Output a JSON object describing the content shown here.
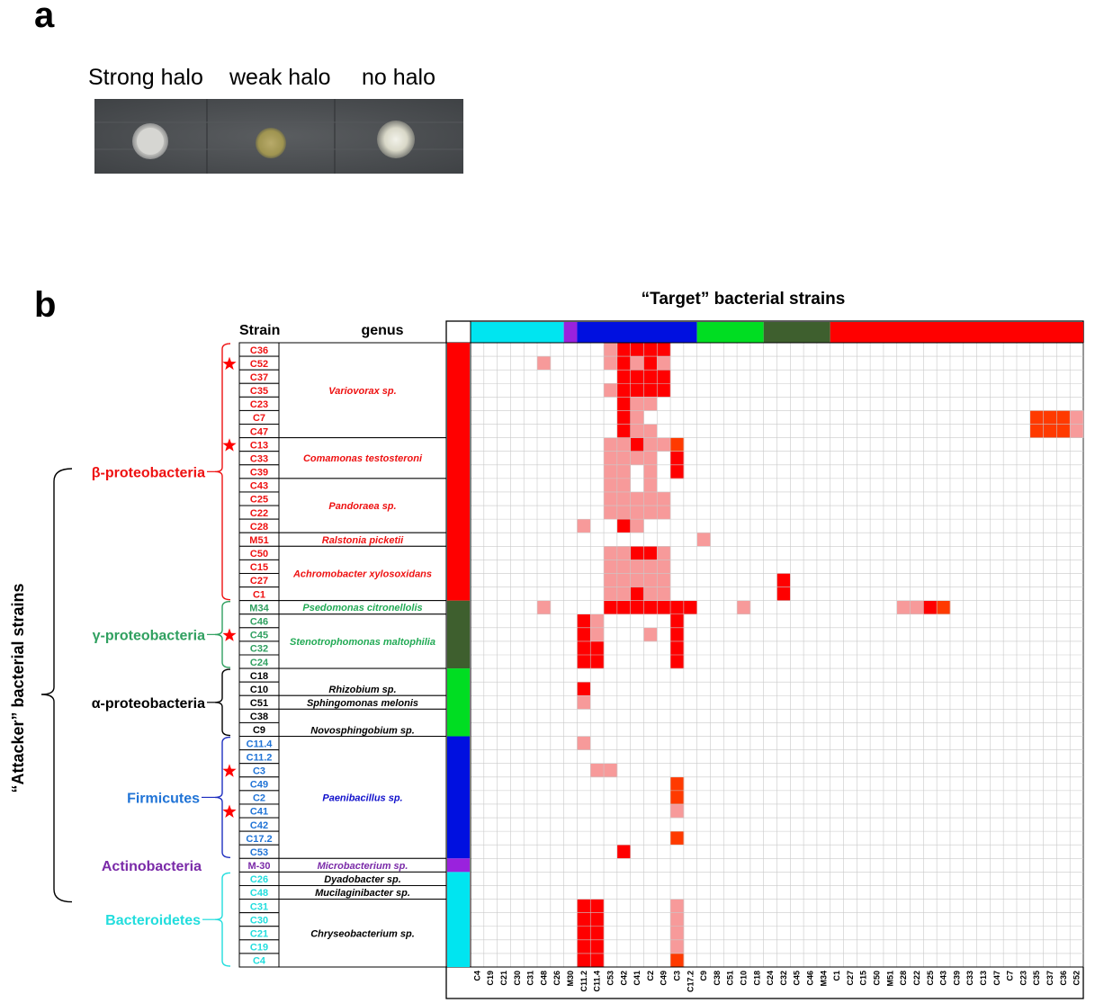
{
  "panel_a": {
    "letter": "a",
    "labels": [
      "Strong halo",
      "weak halo",
      "no halo"
    ]
  },
  "panel_b": {
    "letter": "b",
    "title": "“Target” bacterial strains",
    "y_axis_label": "“Attacker” bacterial strains",
    "header_strain": "Strain",
    "header_genus": "genus"
  },
  "colors": {
    "beta": "#ff0000",
    "gamma": "#3e5f2e",
    "alpha": "#00dd22",
    "firmicutes": "#0010e0",
    "actino": "#9a22dd",
    "bacteroidetes": "#00e5f0",
    "strong": "#ff0000",
    "weak": "#f79a9a",
    "mid": "#ff3a00",
    "group_text": {
      "beta": "#ee1111",
      "gamma": "#30a060",
      "alpha": "#000000",
      "firmicutes": "#1f73d6",
      "actino": "#7a2aa8",
      "bacteroidetes": "#22dddd"
    }
  },
  "groups": [
    {
      "name": "β-proteobacteria",
      "key": "beta"
    },
    {
      "name": "γ-proteobacteria",
      "key": "gamma"
    },
    {
      "name": "α-proteobacteria",
      "key": "alpha"
    },
    {
      "name": "Firmicutes",
      "key": "firmicutes"
    },
    {
      "name": "Actinobacteria",
      "key": "actino"
    },
    {
      "name": "Bacteroidetes",
      "key": "bacteroidetes"
    }
  ],
  "strains": [
    {
      "name": "C36",
      "g": "beta"
    },
    {
      "name": "C52",
      "g": "beta"
    },
    {
      "name": "C37",
      "g": "beta"
    },
    {
      "name": "C35",
      "g": "beta"
    },
    {
      "name": "C23",
      "g": "beta"
    },
    {
      "name": "C7",
      "g": "beta"
    },
    {
      "name": "C47",
      "g": "beta"
    },
    {
      "name": "C13",
      "g": "beta"
    },
    {
      "name": "C33",
      "g": "beta"
    },
    {
      "name": "C39",
      "g": "beta"
    },
    {
      "name": "C43",
      "g": "beta"
    },
    {
      "name": "C25",
      "g": "beta"
    },
    {
      "name": "C22",
      "g": "beta"
    },
    {
      "name": "C28",
      "g": "beta"
    },
    {
      "name": "M51",
      "g": "beta"
    },
    {
      "name": "C50",
      "g": "beta"
    },
    {
      "name": "C15",
      "g": "beta"
    },
    {
      "name": "C27",
      "g": "beta"
    },
    {
      "name": "C1",
      "g": "beta"
    },
    {
      "name": "M34",
      "g": "gamma"
    },
    {
      "name": "C46",
      "g": "gamma"
    },
    {
      "name": "C45",
      "g": "gamma"
    },
    {
      "name": "C32",
      "g": "gamma"
    },
    {
      "name": "C24",
      "g": "gamma"
    },
    {
      "name": "C18",
      "g": "alpha"
    },
    {
      "name": "C10",
      "g": "alpha"
    },
    {
      "name": "C51",
      "g": "alpha"
    },
    {
      "name": "C38",
      "g": "alpha"
    },
    {
      "name": "C9",
      "g": "alpha"
    },
    {
      "name": "C11.4",
      "g": "firmicutes"
    },
    {
      "name": "C11.2",
      "g": "firmicutes"
    },
    {
      "name": "C3",
      "g": "firmicutes"
    },
    {
      "name": "C49",
      "g": "firmicutes"
    },
    {
      "name": "C2",
      "g": "firmicutes"
    },
    {
      "name": "C41",
      "g": "firmicutes"
    },
    {
      "name": "C42",
      "g": "firmicutes"
    },
    {
      "name": "C17.2",
      "g": "firmicutes"
    },
    {
      "name": "C53",
      "g": "firmicutes"
    },
    {
      "name": "M-30",
      "g": "actino"
    },
    {
      "name": "C26",
      "g": "bacteroidetes"
    },
    {
      "name": "C48",
      "g": "bacteroidetes"
    },
    {
      "name": "C31",
      "g": "bacteroidetes"
    },
    {
      "name": "C30",
      "g": "bacteroidetes"
    },
    {
      "name": "C21",
      "g": "bacteroidetes"
    },
    {
      "name": "C19",
      "g": "bacteroidetes"
    },
    {
      "name": "C4",
      "g": "bacteroidetes"
    }
  ],
  "genera": [
    {
      "label": "Variovorax sp.",
      "start": 0,
      "end": 6,
      "g": "beta"
    },
    {
      "label": "Comamonas testosteroni",
      "start": 7,
      "end": 9,
      "g": "beta"
    },
    {
      "label": "Pandoraea sp.",
      "start": 10,
      "end": 13,
      "g": "beta"
    },
    {
      "label": "Ralstonia picketii",
      "start": 14,
      "end": 14,
      "g": "beta"
    },
    {
      "label": "Achromobacter xylosoxidans",
      "start": 15,
      "end": 18,
      "g": "beta"
    },
    {
      "label": "Psedomonas citronellolis",
      "start": 19,
      "end": 19,
      "g": "gamma"
    },
    {
      "label": "Stenotrophomonas maltophilia",
      "start": 20,
      "end": 23,
      "g": "gamma"
    },
    {
      "label": "Rhizobium sp.",
      "start": 24,
      "end": 25,
      "g": "alpha"
    },
    {
      "label": "Sphingomonas melonis",
      "start": 26,
      "end": 26,
      "g": "alpha"
    },
    {
      "label": "Novosphingobium sp.",
      "start": 27,
      "end": 28,
      "g": "alpha"
    },
    {
      "label": "Paenibacillus sp.",
      "start": 29,
      "end": 37,
      "g": "firmicutes"
    },
    {
      "label": "Microbacterium sp.",
      "start": 38,
      "end": 38,
      "g": "actino"
    },
    {
      "label": "Dyadobacter sp.",
      "start": 39,
      "end": 39,
      "g": "bacteroidetes"
    },
    {
      "label": "Mucilaginibacter sp.",
      "start": 40,
      "end": 40,
      "g": "bacteroidetes"
    },
    {
      "label": "Chryseobacterium sp.",
      "start": 41,
      "end": 45,
      "g": "bacteroidetes"
    }
  ],
  "stars_rows": [
    1,
    7,
    21,
    31,
    34
  ],
  "targets": [
    "C4",
    "C19",
    "C21",
    "C30",
    "C31",
    "C48",
    "C26",
    "M30",
    "C11.2",
    "C11.4",
    "C53",
    "C42",
    "C41",
    "C2",
    "C49",
    "C3",
    "C17.2",
    "C9",
    "C38",
    "C51",
    "C10",
    "C18",
    "C24",
    "C32",
    "C45",
    "C46",
    "M34",
    "C1",
    "C27",
    "C15",
    "C50",
    "M51",
    "C28",
    "C22",
    "C25",
    "C43",
    "C39",
    "C33",
    "C13",
    "C47",
    "C7",
    "C23",
    "C35",
    "C37",
    "C36",
    "C52"
  ],
  "target_groups": [
    {
      "key": "bacteroidetes",
      "start": 0,
      "end": 6
    },
    {
      "key": "actino",
      "start": 7,
      "end": 7
    },
    {
      "key": "firmicutes",
      "start": 8,
      "end": 16
    },
    {
      "key": "alpha",
      "start": 17,
      "end": 21
    },
    {
      "key": "gamma",
      "start": 22,
      "end": 26
    },
    {
      "key": "beta",
      "start": 27,
      "end": 45
    }
  ],
  "chart_data": {
    "type": "heatmap",
    "title": "“Target” bacterial strains",
    "ylabel": "“Attacker” bacterial strains",
    "legend_values": {
      "0": "no halo",
      "1": "weak halo",
      "2": "strong halo"
    },
    "cells": [
      {
        "row": 0,
        "col": 11,
        "v": 2
      },
      {
        "row": 0,
        "col": 12,
        "v": 2
      },
      {
        "row": 0,
        "col": 13,
        "v": 2
      },
      {
        "row": 0,
        "col": 14,
        "v": 2
      },
      {
        "row": 0,
        "col": 10,
        "v": 1
      },
      {
        "row": 1,
        "col": 5,
        "v": 1
      },
      {
        "row": 1,
        "col": 10,
        "v": 1
      },
      {
        "row": 1,
        "col": 11,
        "v": 2
      },
      {
        "row": 1,
        "col": 12,
        "v": 1
      },
      {
        "row": 1,
        "col": 13,
        "v": 2
      },
      {
        "row": 1,
        "col": 14,
        "v": 1
      },
      {
        "row": 2,
        "col": 11,
        "v": 2
      },
      {
        "row": 2,
        "col": 12,
        "v": 2
      },
      {
        "row": 2,
        "col": 13,
        "v": 2
      },
      {
        "row": 2,
        "col": 14,
        "v": 2
      },
      {
        "row": 3,
        "col": 10,
        "v": 1
      },
      {
        "row": 3,
        "col": 11,
        "v": 2
      },
      {
        "row": 3,
        "col": 12,
        "v": 2
      },
      {
        "row": 3,
        "col": 13,
        "v": 2
      },
      {
        "row": 3,
        "col": 14,
        "v": 2
      },
      {
        "row": 4,
        "col": 11,
        "v": 2
      },
      {
        "row": 4,
        "col": 12,
        "v": 1
      },
      {
        "row": 4,
        "col": 13,
        "v": 1
      },
      {
        "row": 5,
        "col": 11,
        "v": 2
      },
      {
        "row": 5,
        "col": 12,
        "v": 1
      },
      {
        "row": 5,
        "col": 42,
        "v": 3
      },
      {
        "row": 5,
        "col": 43,
        "v": 3
      },
      {
        "row": 5,
        "col": 44,
        "v": 3
      },
      {
        "row": 5,
        "col": 45,
        "v": 1
      },
      {
        "row": 6,
        "col": 11,
        "v": 2
      },
      {
        "row": 6,
        "col": 12,
        "v": 1
      },
      {
        "row": 6,
        "col": 13,
        "v": 1
      },
      {
        "row": 6,
        "col": 42,
        "v": 3
      },
      {
        "row": 6,
        "col": 43,
        "v": 3
      },
      {
        "row": 6,
        "col": 44,
        "v": 3
      },
      {
        "row": 6,
        "col": 45,
        "v": 1
      },
      {
        "row": 7,
        "col": 10,
        "v": 1
      },
      {
        "row": 7,
        "col": 11,
        "v": 1
      },
      {
        "row": 7,
        "col": 12,
        "v": 2
      },
      {
        "row": 7,
        "col": 13,
        "v": 1
      },
      {
        "row": 7,
        "col": 14,
        "v": 1
      },
      {
        "row": 7,
        "col": 15,
        "v": 3
      },
      {
        "row": 8,
        "col": 10,
        "v": 1
      },
      {
        "row": 8,
        "col": 11,
        "v": 1
      },
      {
        "row": 8,
        "col": 12,
        "v": 1
      },
      {
        "row": 8,
        "col": 13,
        "v": 1
      },
      {
        "row": 8,
        "col": 15,
        "v": 2
      },
      {
        "row": 9,
        "col": 10,
        "v": 1
      },
      {
        "row": 9,
        "col": 11,
        "v": 1
      },
      {
        "row": 9,
        "col": 13,
        "v": 1
      },
      {
        "row": 9,
        "col": 15,
        "v": 2
      },
      {
        "row": 10,
        "col": 10,
        "v": 1
      },
      {
        "row": 10,
        "col": 11,
        "v": 1
      },
      {
        "row": 10,
        "col": 13,
        "v": 1
      },
      {
        "row": 11,
        "col": 10,
        "v": 1
      },
      {
        "row": 11,
        "col": 11,
        "v": 1
      },
      {
        "row": 11,
        "col": 12,
        "v": 1
      },
      {
        "row": 11,
        "col": 13,
        "v": 1
      },
      {
        "row": 11,
        "col": 14,
        "v": 1
      },
      {
        "row": 12,
        "col": 10,
        "v": 1
      },
      {
        "row": 12,
        "col": 11,
        "v": 1
      },
      {
        "row": 12,
        "col": 12,
        "v": 1
      },
      {
        "row": 12,
        "col": 13,
        "v": 1
      },
      {
        "row": 12,
        "col": 14,
        "v": 1
      },
      {
        "row": 13,
        "col": 8,
        "v": 1
      },
      {
        "row": 13,
        "col": 11,
        "v": 2
      },
      {
        "row": 13,
        "col": 12,
        "v": 1
      },
      {
        "row": 14,
        "col": 17,
        "v": 1
      },
      {
        "row": 15,
        "col": 10,
        "v": 1
      },
      {
        "row": 15,
        "col": 11,
        "v": 1
      },
      {
        "row": 15,
        "col": 12,
        "v": 2
      },
      {
        "row": 15,
        "col": 13,
        "v": 2
      },
      {
        "row": 15,
        "col": 14,
        "v": 1
      },
      {
        "row": 16,
        "col": 10,
        "v": 1
      },
      {
        "row": 16,
        "col": 11,
        "v": 1
      },
      {
        "row": 16,
        "col": 12,
        "v": 1
      },
      {
        "row": 16,
        "col": 13,
        "v": 1
      },
      {
        "row": 16,
        "col": 14,
        "v": 1
      },
      {
        "row": 17,
        "col": 10,
        "v": 1
      },
      {
        "row": 17,
        "col": 11,
        "v": 1
      },
      {
        "row": 17,
        "col": 12,
        "v": 1
      },
      {
        "row": 17,
        "col": 13,
        "v": 1
      },
      {
        "row": 17,
        "col": 14,
        "v": 1
      },
      {
        "row": 17,
        "col": 23,
        "v": 2
      },
      {
        "row": 18,
        "col": 10,
        "v": 1
      },
      {
        "row": 18,
        "col": 11,
        "v": 1
      },
      {
        "row": 18,
        "col": 12,
        "v": 2
      },
      {
        "row": 18,
        "col": 13,
        "v": 1
      },
      {
        "row": 18,
        "col": 14,
        "v": 1
      },
      {
        "row": 18,
        "col": 23,
        "v": 2
      },
      {
        "row": 19,
        "col": 5,
        "v": 1
      },
      {
        "row": 19,
        "col": 10,
        "v": 2
      },
      {
        "row": 19,
        "col": 11,
        "v": 2
      },
      {
        "row": 19,
        "col": 12,
        "v": 2
      },
      {
        "row": 19,
        "col": 13,
        "v": 2
      },
      {
        "row": 19,
        "col": 14,
        "v": 2
      },
      {
        "row": 19,
        "col": 15,
        "v": 2
      },
      {
        "row": 19,
        "col": 16,
        "v": 2
      },
      {
        "row": 19,
        "col": 20,
        "v": 1
      },
      {
        "row": 19,
        "col": 32,
        "v": 1
      },
      {
        "row": 19,
        "col": 33,
        "v": 1
      },
      {
        "row": 19,
        "col": 34,
        "v": 2
      },
      {
        "row": 19,
        "col": 35,
        "v": 3
      },
      {
        "row": 20,
        "col": 8,
        "v": 2
      },
      {
        "row": 20,
        "col": 9,
        "v": 1
      },
      {
        "row": 20,
        "col": 15,
        "v": 2
      },
      {
        "row": 21,
        "col": 8,
        "v": 2
      },
      {
        "row": 21,
        "col": 9,
        "v": 1
      },
      {
        "row": 21,
        "col": 13,
        "v": 1
      },
      {
        "row": 21,
        "col": 15,
        "v": 2
      },
      {
        "row": 22,
        "col": 8,
        "v": 2
      },
      {
        "row": 22,
        "col": 9,
        "v": 2
      },
      {
        "row": 22,
        "col": 15,
        "v": 2
      },
      {
        "row": 23,
        "col": 8,
        "v": 2
      },
      {
        "row": 23,
        "col": 9,
        "v": 2
      },
      {
        "row": 23,
        "col": 15,
        "v": 2
      },
      {
        "row": 25,
        "col": 8,
        "v": 2
      },
      {
        "row": 26,
        "col": 8,
        "v": 1
      },
      {
        "row": 29,
        "col": 8,
        "v": 1
      },
      {
        "row": 31,
        "col": 9,
        "v": 1
      },
      {
        "row": 31,
        "col": 10,
        "v": 1
      },
      {
        "row": 32,
        "col": 15,
        "v": 3
      },
      {
        "row": 33,
        "col": 15,
        "v": 3
      },
      {
        "row": 34,
        "col": 15,
        "v": 1
      },
      {
        "row": 36,
        "col": 15,
        "v": 3
      },
      {
        "row": 37,
        "col": 11,
        "v": 2
      },
      {
        "row": 41,
        "col": 8,
        "v": 2
      },
      {
        "row": 41,
        "col": 9,
        "v": 2
      },
      {
        "row": 41,
        "col": 15,
        "v": 1
      },
      {
        "row": 42,
        "col": 8,
        "v": 2
      },
      {
        "row": 42,
        "col": 9,
        "v": 2
      },
      {
        "row": 42,
        "col": 15,
        "v": 1
      },
      {
        "row": 43,
        "col": 8,
        "v": 2
      },
      {
        "row": 43,
        "col": 9,
        "v": 2
      },
      {
        "row": 43,
        "col": 15,
        "v": 1
      },
      {
        "row": 44,
        "col": 8,
        "v": 2
      },
      {
        "row": 44,
        "col": 9,
        "v": 2
      },
      {
        "row": 44,
        "col": 15,
        "v": 1
      },
      {
        "row": 45,
        "col": 8,
        "v": 2
      },
      {
        "row": 45,
        "col": 9,
        "v": 2
      },
      {
        "row": 45,
        "col": 15,
        "v": 3
      }
    ]
  }
}
